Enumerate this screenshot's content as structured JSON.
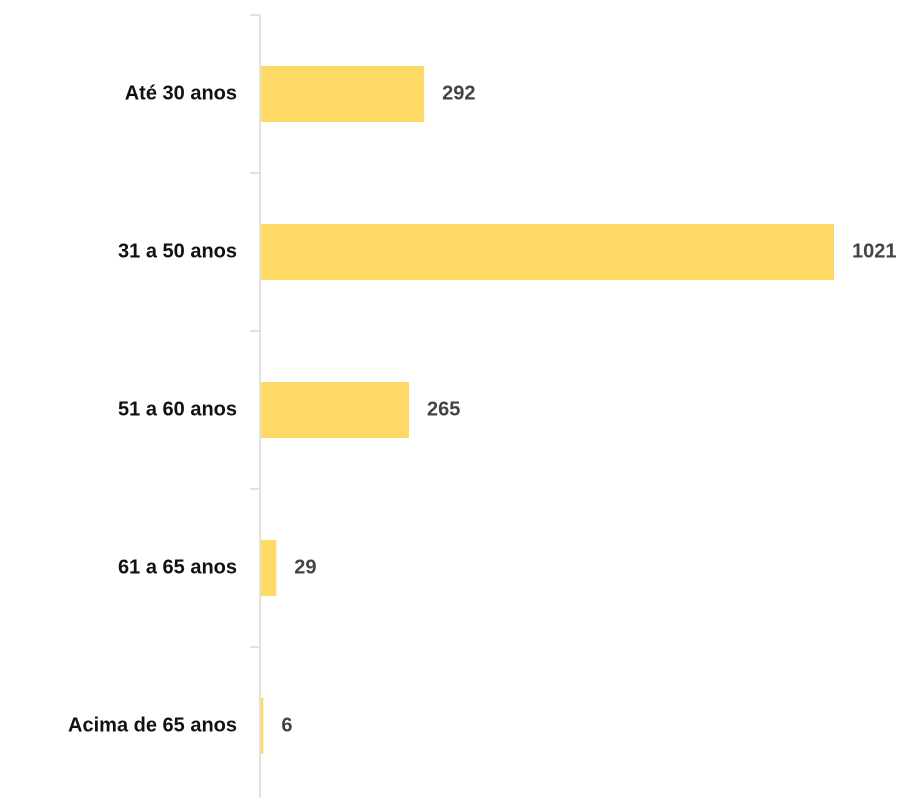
{
  "chart_data": {
    "type": "bar",
    "orientation": "horizontal",
    "categories": [
      "Até 30 anos",
      "31 a 50 anos",
      "51 a 60 anos",
      "61 a 65 anos",
      "Acima de 65 anos"
    ],
    "values": [
      292,
      1021,
      265,
      29,
      6
    ],
    "color": "#ffd966"
  }
}
